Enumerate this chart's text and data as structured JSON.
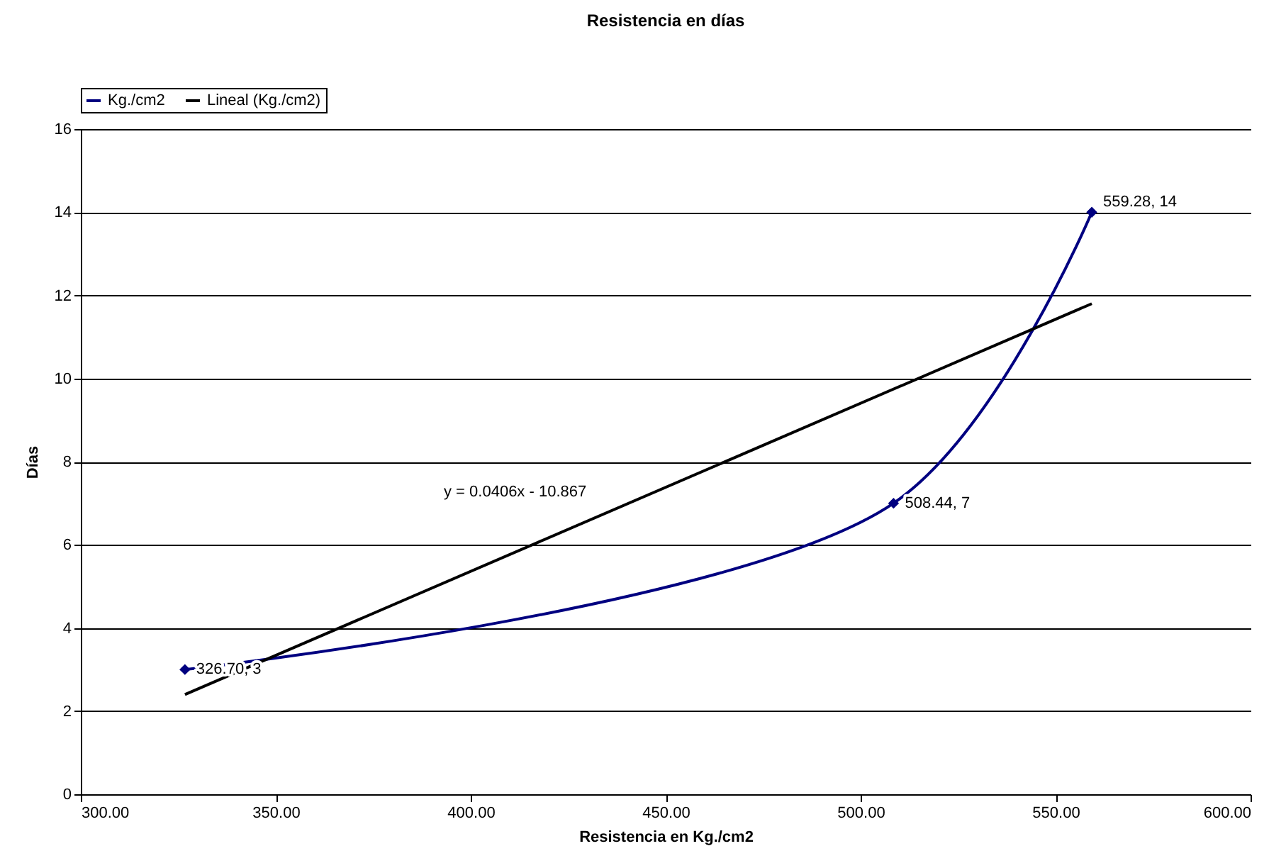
{
  "chart_data": {
    "type": "line",
    "title": "Resistencia en días",
    "xlabel": "Resistencia en Kg./cm2",
    "ylabel": "Días",
    "series": [
      {
        "name": "Kg./cm2",
        "color": "#000080",
        "marker": "diamond",
        "x": [
          326.7,
          508.44,
          559.28
        ],
        "values": [
          3,
          7,
          14
        ],
        "value_labels": [
          "326.70, 3",
          "508.44, 7",
          "559.28, 14"
        ]
      },
      {
        "name": "Lineal (Kg./cm2)",
        "color": "#000000",
        "marker": "none",
        "x": [
          326.7,
          559.28
        ],
        "values": [
          2.4,
          11.8
        ]
      }
    ],
    "annotations": [
      "y = 0.0406x - 10.867"
    ],
    "xlim": [
      300,
      600
    ],
    "xticks": [
      {
        "value": 300,
        "label": "300.00"
      },
      {
        "value": 350,
        "label": "350.00"
      },
      {
        "value": 400,
        "label": "400.00"
      },
      {
        "value": 450,
        "label": "450.00"
      },
      {
        "value": 500,
        "label": "500.00"
      },
      {
        "value": 550,
        "label": "550.00"
      },
      {
        "value": 600,
        "label": "600.00"
      }
    ],
    "ylim": [
      0,
      16
    ],
    "yticks": [
      0,
      2,
      4,
      6,
      8,
      10,
      12,
      14,
      16
    ],
    "grid": "y",
    "legend": "top"
  }
}
